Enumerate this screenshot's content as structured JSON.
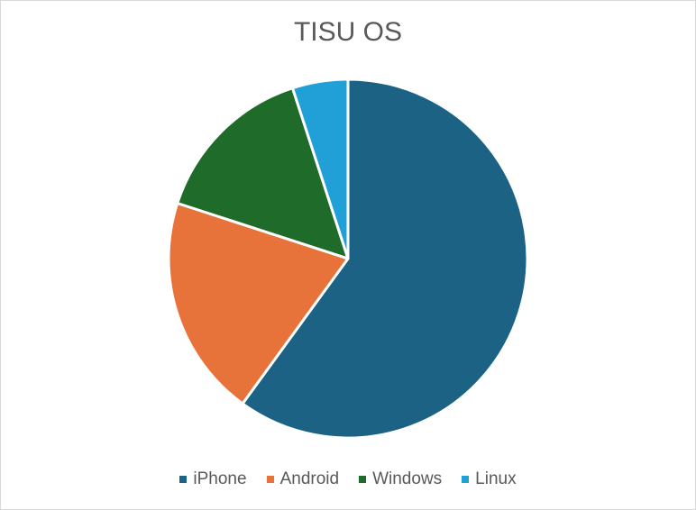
{
  "chart_data": {
    "type": "pie",
    "title": "TISU OS",
    "categories": [
      "iPhone",
      "Android",
      "Windows",
      "Linux"
    ],
    "values": [
      60,
      20,
      15,
      5
    ],
    "colors": [
      "#1b6285",
      "#e8733a",
      "#1e6b2a",
      "#21a0d8"
    ],
    "legend_position": "bottom"
  }
}
